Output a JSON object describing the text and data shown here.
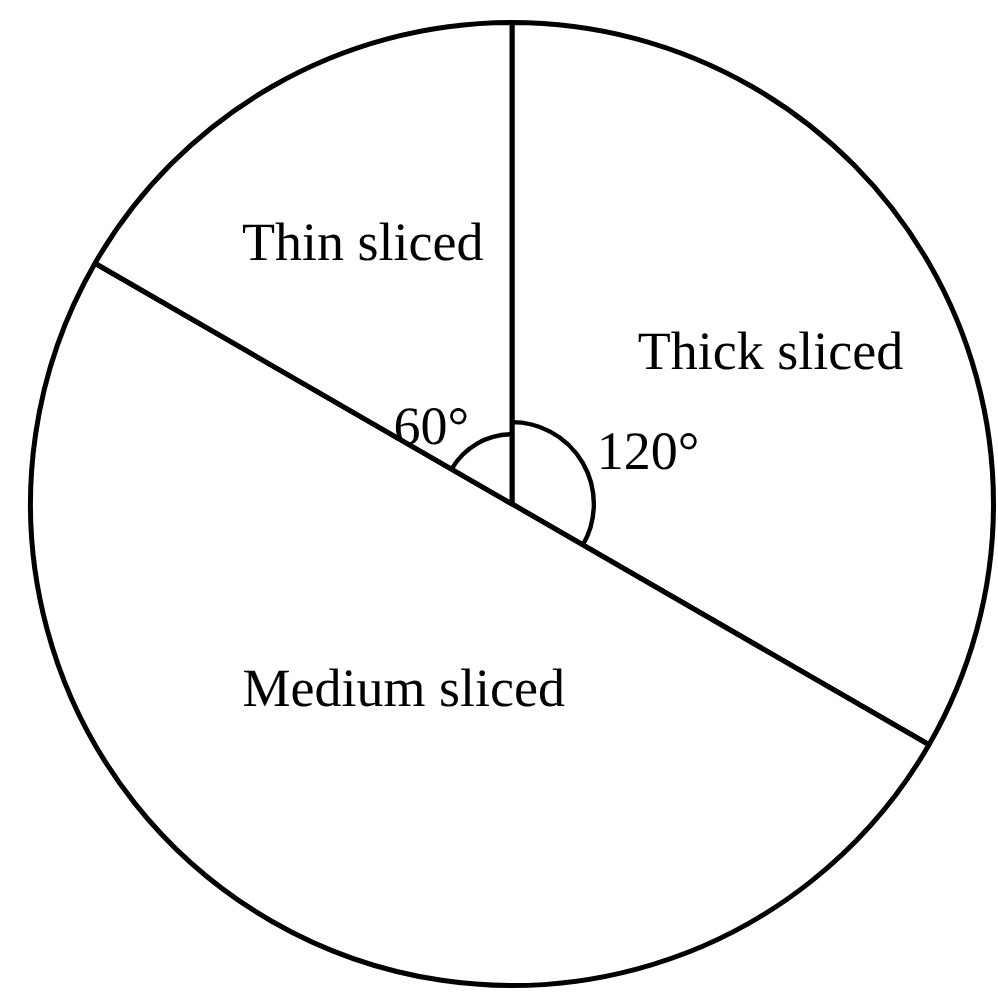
{
  "chart_data": {
    "type": "pie",
    "categories": [
      "Thick sliced",
      "Medium sliced",
      "Thin sliced"
    ],
    "values": [
      120,
      180,
      60
    ],
    "colors": [
      "#ffffff",
      "#ffffff",
      "#ffffff"
    ],
    "value_labels": [
      "120°",
      null,
      "60°"
    ],
    "legend": false
  }
}
